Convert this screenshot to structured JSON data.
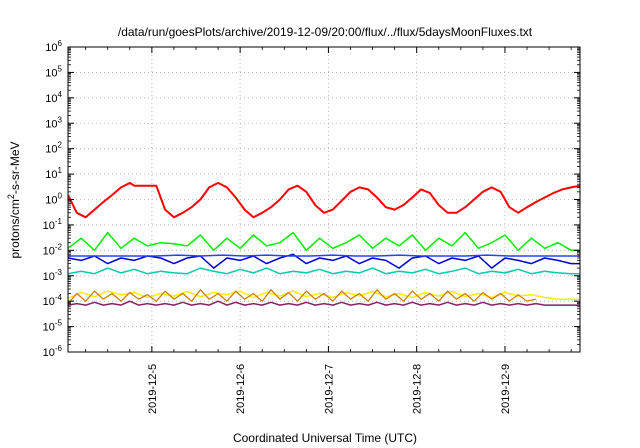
{
  "chart_data": {
    "type": "line",
    "title": "/data/run/goesPlots/archive/2019-12-09/20:00/flux/../flux/5daysMoonFluxes.txt",
    "xlabel": "Coordinated Universal Time (UTC)",
    "ylabel_parts": [
      "protons/cm",
      "2",
      "-s-sr-MeV"
    ],
    "y_scale": "log",
    "ylim_exp": [
      -6,
      6
    ],
    "y_tick_exponents": [
      -6,
      -5,
      -4,
      -3,
      -2,
      -1,
      0,
      1,
      2,
      3,
      4,
      5,
      6
    ],
    "y_tick_base": "10",
    "xlim_days": [
      4.05,
      9.85
    ],
    "x_ticks": [
      {
        "day": 5,
        "label": "2019-12-5"
      },
      {
        "day": 6,
        "label": "2019-12-6"
      },
      {
        "day": 7,
        "label": "2019-12-7"
      },
      {
        "day": 8,
        "label": "2019-12-8"
      },
      {
        "day": 9,
        "label": "2019-12-9"
      }
    ],
    "grid": true,
    "series": [
      {
        "color": "#ff0000",
        "width": 2,
        "x": [
          4.05,
          4.15,
          4.25,
          4.35,
          4.45,
          4.55,
          4.65,
          4.75,
          4.8,
          4.9,
          5.0,
          5.05,
          5.15,
          5.25,
          5.35,
          5.45,
          5.55,
          5.65,
          5.75,
          5.85,
          5.95,
          6.05,
          6.15,
          6.25,
          6.35,
          6.45,
          6.55,
          6.65,
          6.75,
          6.85,
          6.95,
          7.05,
          7.15,
          7.25,
          7.35,
          7.45,
          7.55,
          7.65,
          7.75,
          7.85,
          7.95,
          8.05,
          8.15,
          8.25,
          8.35,
          8.45,
          8.55,
          8.65,
          8.75,
          8.85,
          8.95,
          9.05,
          9.15,
          9.25,
          9.35,
          9.45,
          9.55,
          9.65,
          9.75,
          9.85
        ],
        "y": [
          1.5,
          0.3,
          0.2,
          0.4,
          0.8,
          1.5,
          3.0,
          4.5,
          3.5,
          3.5,
          3.5,
          3.5,
          0.4,
          0.2,
          0.3,
          0.5,
          1.0,
          3.0,
          4.5,
          3.0,
          1.2,
          0.4,
          0.2,
          0.3,
          0.5,
          1.0,
          2.5,
          3.5,
          2.0,
          0.6,
          0.3,
          0.4,
          0.9,
          2.0,
          3.0,
          2.5,
          1.2,
          0.5,
          0.4,
          0.6,
          1.2,
          2.5,
          1.8,
          0.6,
          0.3,
          0.3,
          0.5,
          1.0,
          2.0,
          3.0,
          2.0,
          0.5,
          0.3,
          0.5,
          0.8,
          1.2,
          1.8,
          2.5,
          3.0,
          3.5
        ]
      },
      {
        "color": "#00ee00",
        "width": 1.5,
        "x": [
          4.05,
          4.2,
          4.35,
          4.5,
          4.65,
          4.8,
          4.95,
          5.1,
          5.25,
          5.4,
          5.55,
          5.7,
          5.85,
          6.0,
          6.15,
          6.3,
          6.45,
          6.6,
          6.75,
          6.9,
          7.05,
          7.2,
          7.35,
          7.5,
          7.65,
          7.8,
          7.95,
          8.1,
          8.25,
          8.4,
          8.55,
          8.7,
          8.85,
          9.0,
          9.15,
          9.3,
          9.45,
          9.6,
          9.75,
          9.85
        ],
        "y": [
          0.012,
          0.03,
          0.01,
          0.05,
          0.012,
          0.03,
          0.015,
          0.02,
          0.018,
          0.015,
          0.04,
          0.01,
          0.03,
          0.012,
          0.04,
          0.015,
          0.02,
          0.05,
          0.01,
          0.03,
          0.012,
          0.02,
          0.04,
          0.012,
          0.03,
          0.015,
          0.04,
          0.01,
          0.03,
          0.015,
          0.05,
          0.012,
          0.02,
          0.04,
          0.01,
          0.03,
          0.012,
          0.02,
          0.01,
          0.01
        ]
      },
      {
        "color": "#0000cc",
        "width": 1.5,
        "x": [
          4.05,
          4.2,
          4.35,
          4.5,
          4.65,
          4.8,
          4.95,
          5.1,
          5.25,
          5.4,
          5.55,
          5.7,
          5.85,
          6.0,
          6.15,
          6.3,
          6.45,
          6.6,
          6.75,
          6.9,
          7.05,
          7.2,
          7.35,
          7.5,
          7.65,
          7.8,
          7.95,
          8.1,
          8.25,
          8.4,
          8.55,
          8.7,
          8.85,
          9.0,
          9.15,
          9.3,
          9.45,
          9.6,
          9.75,
          9.85
        ],
        "y": [
          0.005,
          0.004,
          0.006,
          0.003,
          0.005,
          0.004,
          0.006,
          0.005,
          0.003,
          0.005,
          0.006,
          0.002,
          0.005,
          0.004,
          0.006,
          0.003,
          0.005,
          0.007,
          0.003,
          0.005,
          0.004,
          0.006,
          0.003,
          0.005,
          0.004,
          0.002,
          0.005,
          0.006,
          0.003,
          0.005,
          0.004,
          0.006,
          0.002,
          0.005,
          0.004,
          0.003,
          0.005,
          0.004,
          0.003,
          0.003
        ]
      },
      {
        "color": "#2244ff",
        "width": 1.5,
        "x": [
          4.05,
          4.3,
          4.55,
          4.8,
          5.05,
          5.3,
          5.55,
          5.8,
          6.05,
          6.3,
          6.55,
          6.8,
          7.05,
          7.3,
          7.55,
          7.8,
          8.05,
          8.3,
          8.55,
          8.8,
          9.05,
          9.3,
          9.55,
          9.85
        ],
        "y": [
          0.006,
          0.006,
          0.006,
          0.006,
          0.006,
          0.0065,
          0.006,
          0.0065,
          0.006,
          0.0065,
          0.006,
          0.006,
          0.0065,
          0.006,
          0.006,
          0.0065,
          0.006,
          0.006,
          0.006,
          0.0065,
          0.006,
          0.006,
          0.006,
          0.006
        ]
      },
      {
        "color": "#00ccaa",
        "width": 1.5,
        "x": [
          4.05,
          4.2,
          4.35,
          4.5,
          4.65,
          4.8,
          4.95,
          5.1,
          5.25,
          5.4,
          5.55,
          5.7,
          5.85,
          6.0,
          6.15,
          6.3,
          6.45,
          6.6,
          6.75,
          6.9,
          7.05,
          7.2,
          7.35,
          7.5,
          7.65,
          7.8,
          7.95,
          8.1,
          8.25,
          8.4,
          8.55,
          8.7,
          8.85,
          9.0,
          9.15,
          9.3,
          9.45,
          9.6,
          9.75,
          9.85
        ],
        "y": [
          0.0012,
          0.0015,
          0.0012,
          0.002,
          0.0013,
          0.0018,
          0.0012,
          0.0015,
          0.0013,
          0.0012,
          0.002,
          0.0015,
          0.0012,
          0.0018,
          0.0013,
          0.002,
          0.0012,
          0.0015,
          0.0013,
          0.0018,
          0.0012,
          0.0015,
          0.0013,
          0.002,
          0.0012,
          0.0015,
          0.0013,
          0.0018,
          0.0012,
          0.0015,
          0.002,
          0.0012,
          0.0015,
          0.0013,
          0.0018,
          0.0012,
          0.0015,
          0.0013,
          0.0012,
          0.0012
        ]
      },
      {
        "color": "#ffee00",
        "width": 1.5,
        "x": [
          4.05,
          4.2,
          4.35,
          4.5,
          4.65,
          4.8,
          4.95,
          5.1,
          5.25,
          5.4,
          5.55,
          5.7,
          5.85,
          6.0,
          6.15,
          6.3,
          6.45,
          6.6,
          6.75,
          6.9,
          7.05,
          7.2,
          7.35,
          7.5,
          7.65,
          7.8,
          7.95,
          8.1,
          8.25,
          8.4,
          8.55,
          8.7,
          8.85,
          9.0,
          9.15,
          9.3,
          9.45,
          9.6,
          9.75,
          9.85
        ],
        "y": [
          0.00013,
          0.00022,
          0.00015,
          0.00025,
          0.00018,
          0.00022,
          0.00014,
          0.0002,
          0.00016,
          0.00024,
          0.00015,
          0.00022,
          0.00018,
          0.00025,
          0.00014,
          0.00022,
          0.00016,
          0.00025,
          0.00015,
          0.0002,
          0.00014,
          0.00022,
          0.00016,
          0.00024,
          0.00015,
          0.0002,
          0.00014,
          0.00022,
          0.00016,
          0.00024,
          0.00015,
          0.0002,
          0.00014,
          0.00022,
          0.00016,
          0.00018,
          0.00014,
          0.00012,
          0.00012,
          0.00012
        ]
      },
      {
        "color": "#cc7700",
        "width": 1.2,
        "x": [
          4.05,
          4.15,
          4.25,
          4.35,
          4.45,
          4.55,
          4.65,
          4.75,
          4.85,
          4.95,
          5.05,
          5.15,
          5.25,
          5.35,
          5.45,
          5.55,
          5.65,
          5.75,
          5.85,
          5.95,
          6.05,
          6.15,
          6.25,
          6.35,
          6.45,
          6.55,
          6.65,
          6.75,
          6.85,
          6.95,
          7.05,
          7.15,
          7.25,
          7.35,
          7.45,
          7.55,
          7.65,
          7.75,
          7.85,
          7.95,
          8.05,
          8.15,
          8.25,
          8.35,
          8.45,
          8.55,
          8.65,
          8.75,
          8.85,
          8.95,
          9.05,
          9.15,
          9.25,
          9.35
        ],
        "y": [
          8e-05,
          0.0002,
          0.0001,
          0.00025,
          0.00012,
          0.0002,
          0.0001,
          0.00022,
          0.00012,
          0.00018,
          0.0001,
          0.00025,
          0.00012,
          0.0002,
          0.0001,
          0.00028,
          0.00012,
          0.0002,
          0.0001,
          0.00025,
          0.00012,
          0.0002,
          0.0001,
          0.00028,
          0.00012,
          0.00022,
          0.0001,
          0.00025,
          0.00012,
          0.0002,
          0.0001,
          0.00025,
          0.00012,
          0.0002,
          0.0001,
          0.00028,
          0.00012,
          0.0002,
          0.0001,
          0.00025,
          0.00012,
          0.0002,
          0.0001,
          0.00025,
          0.00012,
          0.0002,
          0.0001,
          0.00022,
          0.00012,
          0.0002,
          0.0001,
          0.00018,
          0.0001,
          0.00012
        ]
      },
      {
        "color": "#882266",
        "width": 1.5,
        "x": [
          4.05,
          4.15,
          4.25,
          4.35,
          4.45,
          4.55,
          4.65,
          4.75,
          4.85,
          4.95,
          5.05,
          5.15,
          5.25,
          5.35,
          5.45,
          5.55,
          5.65,
          5.75,
          5.85,
          5.95,
          6.05,
          6.15,
          6.25,
          6.35,
          6.45,
          6.55,
          6.65,
          6.75,
          6.85,
          6.95,
          7.05,
          7.15,
          7.25,
          7.35,
          7.45,
          7.55,
          7.65,
          7.75,
          7.85,
          7.95,
          8.05,
          8.15,
          8.25,
          8.35,
          8.45,
          8.55,
          8.65,
          8.75,
          8.85,
          8.95,
          9.05,
          9.15,
          9.25,
          9.35,
          9.45,
          9.55,
          9.65,
          9.75,
          9.85
        ],
        "y": [
          7e-05,
          8e-05,
          7e-05,
          9e-05,
          7e-05,
          8e-05,
          7e-05,
          0.0001,
          7e-05,
          8e-05,
          7e-05,
          8e-05,
          7e-05,
          9e-05,
          7e-05,
          8e-05,
          7e-05,
          0.0001,
          7e-05,
          9e-05,
          7e-05,
          8e-05,
          7e-05,
          9e-05,
          7e-05,
          8e-05,
          7e-05,
          9e-05,
          7e-05,
          8e-05,
          7e-05,
          9e-05,
          7e-05,
          8e-05,
          7e-05,
          9e-05,
          7e-05,
          8e-05,
          7e-05,
          9e-05,
          7e-05,
          8e-05,
          7e-05,
          9e-05,
          7e-05,
          8e-05,
          7e-05,
          9e-05,
          7e-05,
          8e-05,
          7e-05,
          8e-05,
          7e-05,
          8e-05,
          7e-05,
          7e-05,
          7e-05,
          7e-05,
          7e-05
        ]
      }
    ]
  }
}
